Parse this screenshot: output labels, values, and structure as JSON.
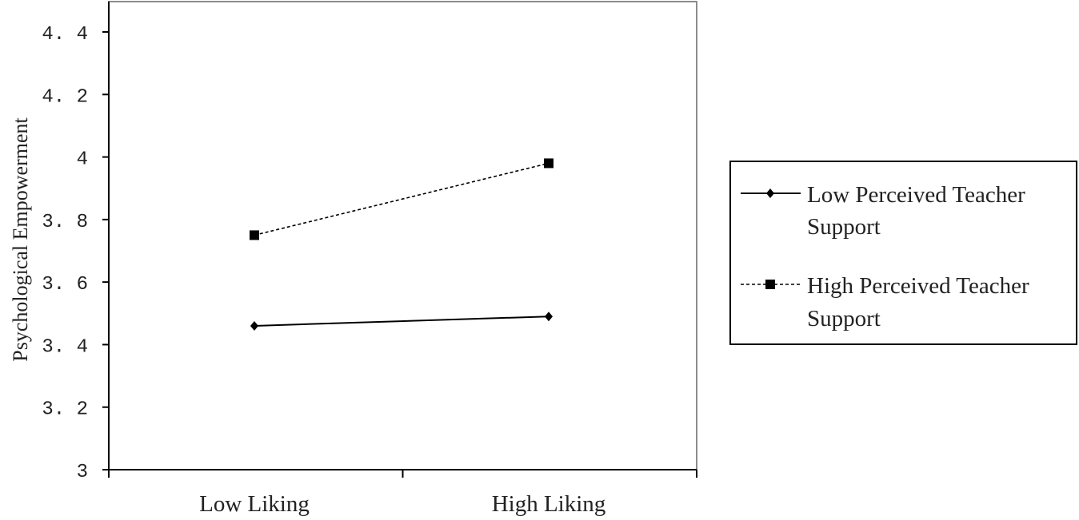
{
  "chart_data": {
    "type": "line",
    "title": "",
    "xlabel": "",
    "ylabel": "Psychological Empowerment",
    "categories": [
      "Low Liking",
      "High Liking"
    ],
    "ylim": [
      3,
      4.45
    ],
    "yticks": [
      "3",
      "3. 2",
      "3. 4",
      "3. 6",
      "3. 8",
      "4",
      "4. 2",
      "4. 4"
    ],
    "ytick_values": [
      3,
      3.2,
      3.4,
      3.6,
      3.8,
      4,
      4.2,
      4.4
    ],
    "grid": false,
    "legend_position": "right",
    "series": [
      {
        "name": "Low Perceived Teacher Support",
        "name_lines": [
          "Low Perceived Teacher",
          "Support"
        ],
        "values": [
          3.46,
          3.49
        ],
        "line_style": "solid",
        "marker": "diamond",
        "color": "#000000"
      },
      {
        "name": "High Perceived Teacher Support",
        "name_lines": [
          "High Perceived Teacher",
          "Support"
        ],
        "values": [
          3.75,
          3.98
        ],
        "line_style": "dashed",
        "marker": "square",
        "color": "#000000"
      }
    ]
  }
}
